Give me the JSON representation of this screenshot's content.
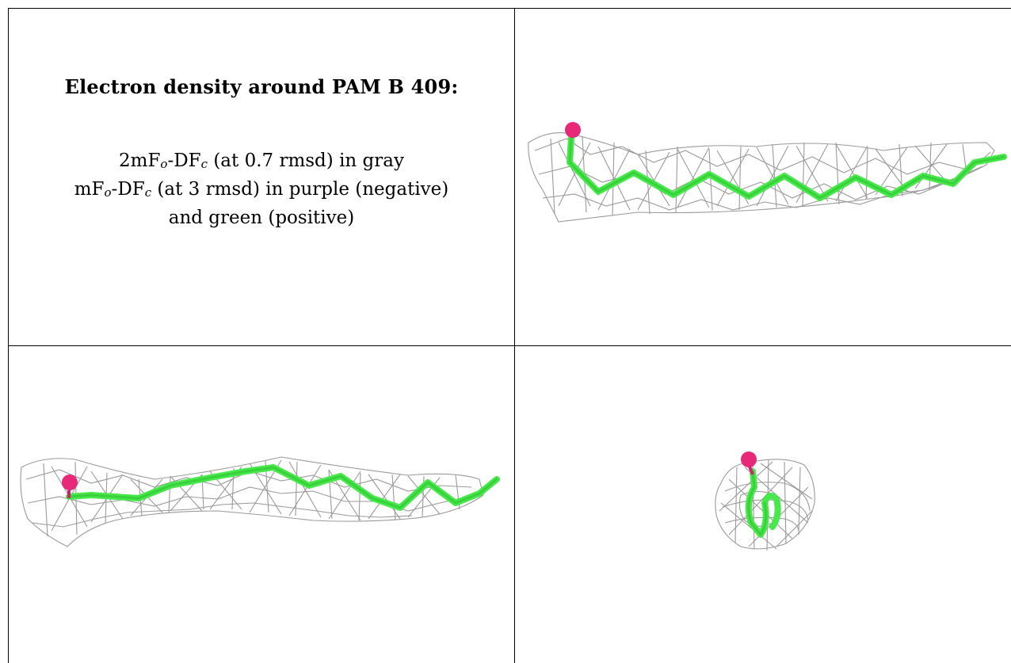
{
  "caption": {
    "title": "Electron density around PAM B 409:",
    "line1": {
      "pre": "2mF",
      "sub1": "o",
      "mid": "-DF",
      "sub2": "c",
      "post": " (at 0.7 rmsd) in gray"
    },
    "line2": {
      "pre": "mF",
      "sub1": "o",
      "mid": "-DF",
      "sub2": "c",
      "post": " (at 3 rmsd) in purple (negative)"
    },
    "line3": "and green (positive)"
  },
  "colors": {
    "mesh": "#9a9a9a",
    "ligand": "#46e84a",
    "oxygen": "#e8297a",
    "border": "#000000"
  },
  "panels": [
    {
      "name": "top-right-view",
      "icon": "density-mesh-side-view"
    },
    {
      "name": "bottom-left-view",
      "icon": "density-mesh-front-view"
    },
    {
      "name": "bottom-right-view",
      "icon": "density-mesh-end-on-view"
    }
  ]
}
